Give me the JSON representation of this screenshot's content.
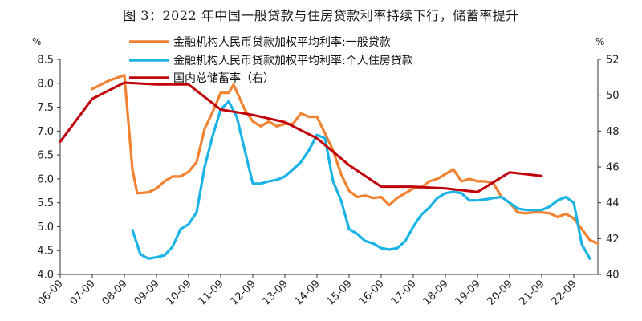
{
  "title": "图 3：2022 年中国一般贷款与住房贷款利率持续下行，储蓄率提升",
  "chart_data": {
    "type": "line",
    "left_unit": "%",
    "right_unit": "%",
    "ylim": [
      4.0,
      8.5
    ],
    "y2lim": [
      40,
      52
    ],
    "y_ticks": [
      "4.0",
      "4.5",
      "5.0",
      "5.5",
      "6.0",
      "6.5",
      "7.0",
      "7.5",
      "8.0",
      "8.5"
    ],
    "y2_ticks": [
      "40",
      "42",
      "44",
      "46",
      "48",
      "50",
      "52"
    ],
    "x_ticks": [
      "06-09",
      "07-09",
      "08-09",
      "09-09",
      "10-09",
      "11-09",
      "12-09",
      "13-09",
      "14-09",
      "15-09",
      "16-09",
      "17-09",
      "18-09",
      "19-09",
      "20-09",
      "21-09",
      "22-09"
    ],
    "legend_position": "top",
    "series": [
      {
        "name": "金融机构人民币贷款加权平均利率:一般贷款",
        "axis": "left",
        "color": "#F08232",
        "points": [
          [
            2007.0,
            7.88
          ],
          [
            2007.5,
            8.05
          ],
          [
            2008.0,
            8.17
          ],
          [
            2008.25,
            6.2
          ],
          [
            2008.4,
            5.7
          ],
          [
            2008.75,
            5.72
          ],
          [
            2009.0,
            5.8
          ],
          [
            2009.25,
            5.95
          ],
          [
            2009.5,
            6.05
          ],
          [
            2009.75,
            6.05
          ],
          [
            2010.0,
            6.15
          ],
          [
            2010.25,
            6.35
          ],
          [
            2010.5,
            7.05
          ],
          [
            2010.75,
            7.4
          ],
          [
            2011.0,
            7.8
          ],
          [
            2011.25,
            7.8
          ],
          [
            2011.4,
            7.97
          ],
          [
            2011.55,
            7.75
          ],
          [
            2011.75,
            7.45
          ],
          [
            2012.0,
            7.2
          ],
          [
            2012.25,
            7.1
          ],
          [
            2012.5,
            7.2
          ],
          [
            2012.75,
            7.1
          ],
          [
            2013.0,
            7.15
          ],
          [
            2013.25,
            7.15
          ],
          [
            2013.5,
            7.37
          ],
          [
            2013.75,
            7.3
          ],
          [
            2014.0,
            7.3
          ],
          [
            2014.25,
            6.95
          ],
          [
            2014.5,
            6.6
          ],
          [
            2014.75,
            6.1
          ],
          [
            2015.0,
            5.75
          ],
          [
            2015.25,
            5.62
          ],
          [
            2015.5,
            5.65
          ],
          [
            2015.75,
            5.6
          ],
          [
            2016.0,
            5.62
          ],
          [
            2016.25,
            5.45
          ],
          [
            2016.5,
            5.6
          ],
          [
            2016.75,
            5.7
          ],
          [
            2017.0,
            5.8
          ],
          [
            2017.25,
            5.82
          ],
          [
            2017.5,
            5.95
          ],
          [
            2017.75,
            6.0
          ],
          [
            2018.0,
            6.1
          ],
          [
            2018.25,
            6.2
          ],
          [
            2018.5,
            5.95
          ],
          [
            2018.75,
            6.0
          ],
          [
            2019.0,
            5.95
          ],
          [
            2019.25,
            5.95
          ],
          [
            2019.5,
            5.9
          ],
          [
            2019.75,
            5.62
          ],
          [
            2020.0,
            5.5
          ],
          [
            2020.25,
            5.3
          ],
          [
            2020.5,
            5.28
          ],
          [
            2020.75,
            5.3
          ],
          [
            2021.0,
            5.3
          ],
          [
            2021.25,
            5.28
          ],
          [
            2021.5,
            5.2
          ],
          [
            2021.75,
            5.27
          ],
          [
            2022.0,
            5.17
          ],
          [
            2022.25,
            4.95
          ],
          [
            2022.5,
            4.72
          ],
          [
            2022.75,
            4.65
          ]
        ]
      },
      {
        "name": "金融机构人民币贷款加权平均利率:个人住房贷款",
        "axis": "left",
        "color": "#1AB3E6",
        "points": [
          [
            2008.25,
            4.93
          ],
          [
            2008.5,
            4.42
          ],
          [
            2008.75,
            4.33
          ],
          [
            2009.0,
            4.36
          ],
          [
            2009.25,
            4.4
          ],
          [
            2009.5,
            4.58
          ],
          [
            2009.75,
            4.95
          ],
          [
            2010.0,
            5.05
          ],
          [
            2010.25,
            5.3
          ],
          [
            2010.5,
            6.25
          ],
          [
            2010.75,
            6.9
          ],
          [
            2011.0,
            7.45
          ],
          [
            2011.25,
            7.62
          ],
          [
            2011.5,
            7.3
          ],
          [
            2011.75,
            6.6
          ],
          [
            2012.0,
            5.9
          ],
          [
            2012.25,
            5.9
          ],
          [
            2012.5,
            5.95
          ],
          [
            2012.75,
            5.98
          ],
          [
            2013.0,
            6.05
          ],
          [
            2013.25,
            6.2
          ],
          [
            2013.5,
            6.35
          ],
          [
            2013.75,
            6.6
          ],
          [
            2014.0,
            6.92
          ],
          [
            2014.25,
            6.85
          ],
          [
            2014.5,
            5.95
          ],
          [
            2014.75,
            5.55
          ],
          [
            2015.0,
            4.95
          ],
          [
            2015.25,
            4.85
          ],
          [
            2015.5,
            4.7
          ],
          [
            2015.75,
            4.65
          ],
          [
            2016.0,
            4.55
          ],
          [
            2016.25,
            4.52
          ],
          [
            2016.5,
            4.55
          ],
          [
            2016.75,
            4.7
          ],
          [
            2017.0,
            5.0
          ],
          [
            2017.25,
            5.25
          ],
          [
            2017.5,
            5.4
          ],
          [
            2017.75,
            5.6
          ],
          [
            2018.0,
            5.7
          ],
          [
            2018.25,
            5.73
          ],
          [
            2018.5,
            5.7
          ],
          [
            2018.75,
            5.55
          ],
          [
            2019.0,
            5.55
          ],
          [
            2019.25,
            5.57
          ],
          [
            2019.5,
            5.6
          ],
          [
            2019.75,
            5.62
          ],
          [
            2020.0,
            5.5
          ],
          [
            2020.25,
            5.38
          ],
          [
            2020.5,
            5.35
          ],
          [
            2020.75,
            5.35
          ],
          [
            2021.0,
            5.35
          ],
          [
            2021.25,
            5.42
          ],
          [
            2021.5,
            5.55
          ],
          [
            2021.75,
            5.62
          ],
          [
            2022.0,
            5.5
          ],
          [
            2022.25,
            4.63
          ],
          [
            2022.5,
            4.33
          ]
        ]
      },
      {
        "name": "国内总储蓄率（右）",
        "axis": "right",
        "color": "#C0000A",
        "points": [
          [
            2006.0,
            47.4
          ],
          [
            2007.0,
            49.8
          ],
          [
            2008.0,
            50.7
          ],
          [
            2009.0,
            50.6
          ],
          [
            2010.0,
            50.6
          ],
          [
            2011.0,
            49.2
          ],
          [
            2012.0,
            48.9
          ],
          [
            2013.0,
            48.5
          ],
          [
            2014.0,
            47.6
          ],
          [
            2015.0,
            46.1
          ],
          [
            2016.0,
            44.9
          ],
          [
            2017.0,
            44.9
          ],
          [
            2018.0,
            44.8
          ],
          [
            2019.0,
            44.6
          ],
          [
            2020.0,
            45.7
          ],
          [
            2021.0,
            45.5
          ]
        ]
      }
    ]
  }
}
